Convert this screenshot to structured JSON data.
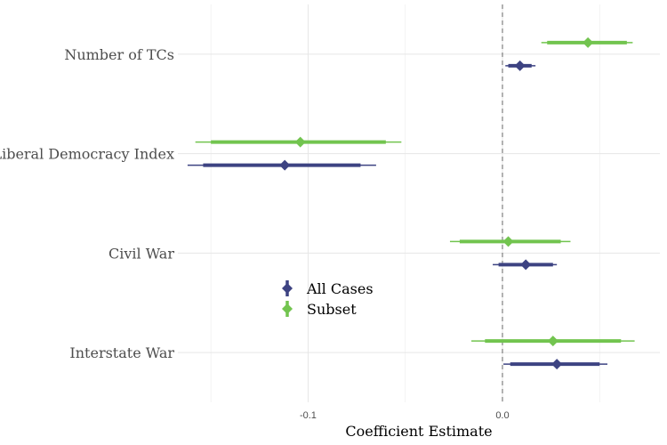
{
  "chart_data": {
    "type": "coefficient-plot",
    "xlabel": "Coefficient Estimate",
    "xlim": [
      -0.167,
      0.081
    ],
    "x_ticks": [
      {
        "value": -0.1,
        "label": "-0.1"
      },
      {
        "value": 0.0,
        "label": "0.0"
      }
    ],
    "reference_line": 0.0,
    "grid": true,
    "legend_position": "center-left",
    "categories": [
      "Number of TCs",
      "Liberal Democracy Index",
      "Civil War",
      "Interstate War"
    ],
    "series": [
      {
        "name": "All Cases",
        "color": "#3d4382",
        "estimates": [
          {
            "category": "Number of TCs",
            "est": 0.009,
            "ci_inner": [
              0.003,
              0.015
            ],
            "ci_outer": [
              0.0015,
              0.017
            ]
          },
          {
            "category": "Liberal Democracy Index",
            "est": -0.112,
            "ci_inner": [
              -0.154,
              -0.073
            ],
            "ci_outer": [
              -0.162,
              -0.065
            ]
          },
          {
            "category": "Civil War",
            "est": 0.012,
            "ci_inner": [
              -0.002,
              0.026
            ],
            "ci_outer": [
              -0.005,
              0.028
            ]
          },
          {
            "category": "Interstate War",
            "est": 0.028,
            "ci_inner": [
              0.004,
              0.05
            ],
            "ci_outer": [
              0.0005,
              0.054
            ]
          }
        ]
      },
      {
        "name": "Subset",
        "color": "#72c44f",
        "estimates": [
          {
            "category": "Number of TCs",
            "est": 0.044,
            "ci_inner": [
              0.023,
              0.064
            ],
            "ci_outer": [
              0.02,
              0.067
            ]
          },
          {
            "category": "Liberal Democracy Index",
            "est": -0.104,
            "ci_inner": [
              -0.15,
              -0.06
            ],
            "ci_outer": [
              -0.158,
              -0.052
            ]
          },
          {
            "category": "Civil War",
            "est": 0.003,
            "ci_inner": [
              -0.022,
              0.03
            ],
            "ci_outer": [
              -0.027,
              0.035
            ]
          },
          {
            "category": "Interstate War",
            "est": 0.026,
            "ci_inner": [
              -0.009,
              0.061
            ],
            "ci_outer": [
              -0.016,
              0.068
            ]
          }
        ]
      }
    ]
  }
}
